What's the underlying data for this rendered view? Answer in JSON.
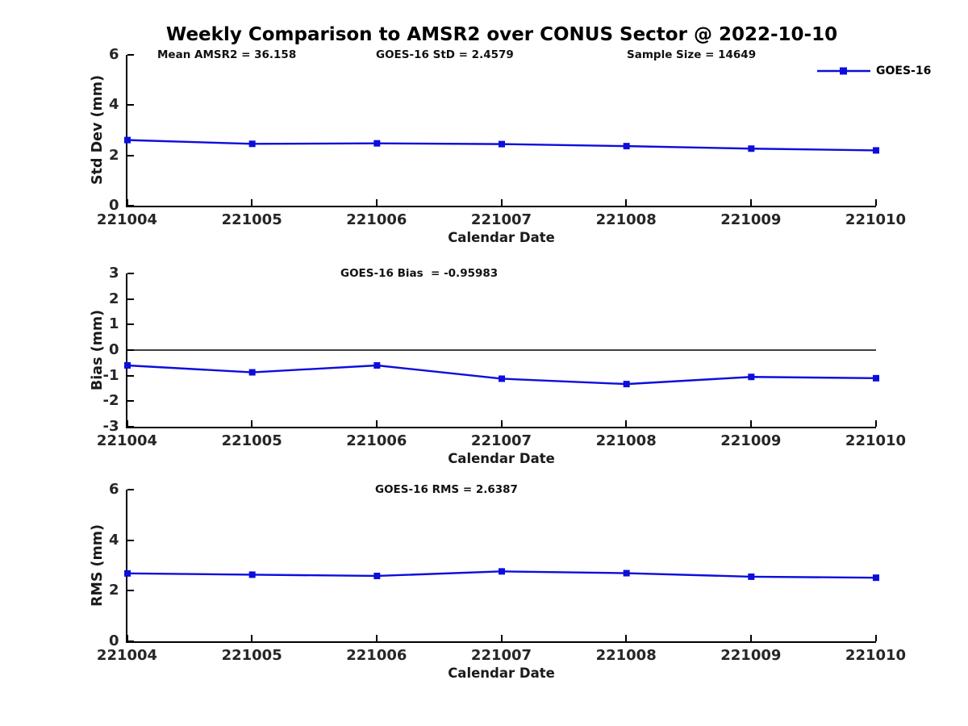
{
  "title": "Weekly Comparison to AMSR2 over CONUS Sector @ 2022-10-10",
  "legend": {
    "label": "GOES-16",
    "color": "#0d0ddd"
  },
  "chart_data": [
    {
      "type": "line",
      "categories": [
        "221004",
        "221005",
        "221006",
        "221007",
        "221008",
        "221009",
        "221010"
      ],
      "series": [
        {
          "name": "GOES-16",
          "values": [
            2.62,
            2.47,
            2.49,
            2.46,
            2.38,
            2.28,
            2.21
          ]
        }
      ],
      "title": "",
      "xlabel": "Calendar Date",
      "ylabel": "Std Dev (mm)",
      "ylim": [
        0,
        6
      ],
      "yticks": [
        0,
        2,
        4,
        6
      ],
      "grid": false,
      "zero_line": false,
      "legend_position": "top-right",
      "marker": "square",
      "annotations": [
        {
          "text": "Mean AMSR2 = 36.158",
          "x": 195
        },
        {
          "text": "GOES-16 StD = 2.4579",
          "x": 466
        },
        {
          "text": "Sample Size = 14649",
          "x": 777
        }
      ]
    },
    {
      "type": "line",
      "categories": [
        "221004",
        "221005",
        "221006",
        "221007",
        "221008",
        "221009",
        "221010"
      ],
      "series": [
        {
          "name": "GOES-16",
          "values": [
            -0.6,
            -0.87,
            -0.6,
            -1.12,
            -1.33,
            -1.05,
            -1.1
          ]
        }
      ],
      "title": "",
      "xlabel": "Calendar Date",
      "ylabel": "Bias (mm)",
      "ylim": [
        -3,
        3
      ],
      "yticks": [
        -3,
        -2,
        -1,
        0,
        1,
        2,
        3
      ],
      "grid": false,
      "zero_line": true,
      "marker": "square",
      "annotations": [
        {
          "text": "GOES-16 Bias  = -0.95983",
          "x": 422
        }
      ]
    },
    {
      "type": "line",
      "categories": [
        "221004",
        "221005",
        "221006",
        "221007",
        "221008",
        "221009",
        "221010"
      ],
      "series": [
        {
          "name": "GOES-16",
          "values": [
            2.68,
            2.63,
            2.58,
            2.76,
            2.69,
            2.55,
            2.51
          ]
        }
      ],
      "title": "",
      "xlabel": "Calendar Date",
      "ylabel": "RMS (mm)",
      "ylim": [
        0,
        6
      ],
      "yticks": [
        0,
        2,
        4,
        6
      ],
      "grid": false,
      "zero_line": false,
      "marker": "square",
      "annotations": [
        {
          "text": "GOES-16 RMS = 2.6387",
          "x": 465
        }
      ]
    }
  ]
}
